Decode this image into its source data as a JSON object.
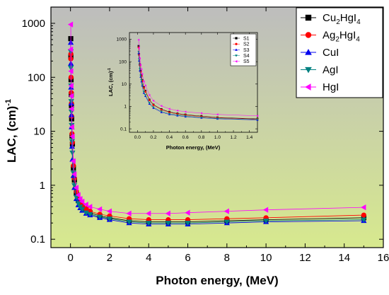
{
  "chart_data": [
    {
      "id": "main",
      "type": "line",
      "xlabel": "Photon energy, (MeV)",
      "ylabel_main": "LAC,  (cm)",
      "ylabel_sup": "-1",
      "xlim": [
        -1,
        16
      ],
      "ylim": [
        0.07,
        2000
      ],
      "yscale": "log",
      "x_ticks": [
        0,
        2,
        4,
        6,
        8,
        10,
        12,
        14,
        16
      ],
      "y_ticks": [
        0.1,
        1,
        10,
        100,
        1000
      ],
      "y_tick_labels": [
        "0.1",
        "1",
        "10",
        "100",
        "1000"
      ],
      "background_gradient": [
        "#bdbdbd",
        "#d7e98e"
      ],
      "legend_position": "top-right",
      "x": [
        0.015,
        0.02,
        0.03,
        0.04,
        0.05,
        0.06,
        0.08,
        0.1,
        0.15,
        0.2,
        0.3,
        0.4,
        0.5,
        0.6,
        0.8,
        1,
        1.5,
        2,
        3,
        4,
        5,
        6,
        8,
        10,
        15
      ],
      "series": [
        {
          "name_base": "Cu",
          "name_sub1": "2",
          "name_mid": "HgI",
          "name_sub2": "4",
          "color": "#000000",
          "marker": "square",
          "values": [
            520,
            240,
            90,
            48,
            30,
            17,
            8.2,
            5.8,
            2.1,
            1.25,
            0.72,
            0.52,
            0.45,
            0.4,
            0.35,
            0.31,
            0.27,
            0.25,
            0.22,
            0.21,
            0.21,
            0.21,
            0.22,
            0.23,
            0.25
          ]
        },
        {
          "name_base": "Ag",
          "name_sub1": "2",
          "name_mid": "HgI",
          "name_sub2": "4",
          "color": "#ff0000",
          "marker": "circle",
          "values": [
            220,
            270,
            100,
            52,
            33,
            19,
            9,
            6.2,
            2.3,
            1.35,
            0.77,
            0.56,
            0.48,
            0.43,
            0.37,
            0.33,
            0.29,
            0.27,
            0.24,
            0.23,
            0.23,
            0.23,
            0.24,
            0.25,
            0.28
          ]
        },
        {
          "name_base": "CuI",
          "name_sub1": "",
          "name_mid": "",
          "name_sub2": "",
          "color": "#0000ee",
          "marker": "triangle-up",
          "values": [
            440,
            180,
            65,
            33,
            20,
            12,
            5.2,
            3.0,
            1.5,
            0.9,
            0.56,
            0.43,
            0.38,
            0.34,
            0.3,
            0.28,
            0.25,
            0.23,
            0.2,
            0.19,
            0.19,
            0.19,
            0.2,
            0.21,
            0.22
          ]
        },
        {
          "name_base": "AgI",
          "name_sub1": "",
          "name_mid": "",
          "name_sub2": "",
          "color": "#008080",
          "marker": "triangle-down",
          "values": [
            300,
            150,
            70,
            36,
            23,
            13,
            6.5,
            4.0,
            1.7,
            1.0,
            0.6,
            0.46,
            0.4,
            0.36,
            0.31,
            0.29,
            0.26,
            0.24,
            0.21,
            0.2,
            0.2,
            0.2,
            0.21,
            0.22,
            0.23
          ]
        },
        {
          "name_base": "HgI",
          "name_sub1": "",
          "name_mid": "",
          "name_sub2": "",
          "color": "#ff00ff",
          "marker": "triangle-left",
          "values": [
            950,
            330,
            130,
            70,
            45,
            26,
            12,
            8.0,
            2.8,
            1.6,
            0.9,
            0.66,
            0.56,
            0.5,
            0.44,
            0.4,
            0.36,
            0.33,
            0.3,
            0.3,
            0.3,
            0.31,
            0.33,
            0.35,
            0.39
          ]
        }
      ]
    },
    {
      "id": "inset",
      "type": "line",
      "xlabel": "Photon energy, (MeV)",
      "ylabel_main": "LAC,  (cm)",
      "ylabel_sup": "-1",
      "xlim": [
        -0.1,
        1.5
      ],
      "ylim": [
        0.07,
        2000
      ],
      "yscale": "log",
      "x_ticks": [
        0,
        0.2,
        0.4,
        0.6,
        0.8,
        1,
        1.2,
        1.4
      ],
      "x_tick_labels": [
        "0.0",
        "0.2",
        "0.4",
        "0.6",
        "0.8",
        "1.0",
        "1.2",
        "1.4"
      ],
      "y_ticks": [
        0.1,
        1,
        10,
        100,
        1000
      ],
      "y_tick_labels": [
        "0.1",
        "1",
        "10",
        "100",
        "1000"
      ],
      "legend_position": "top-right",
      "x": [
        0.015,
        0.02,
        0.03,
        0.04,
        0.05,
        0.06,
        0.08,
        0.1,
        0.15,
        0.2,
        0.3,
        0.4,
        0.5,
        0.6,
        0.8,
        1,
        1.5
      ],
      "series": [
        {
          "name": "S1",
          "color": "#000000",
          "marker": "square",
          "values": [
            500,
            220,
            75,
            38,
            24,
            15,
            7.2,
            4.9,
            2.0,
            1.2,
            0.75,
            0.57,
            0.48,
            0.43,
            0.37,
            0.32,
            0.28
          ]
        },
        {
          "name": "S2",
          "color": "#ff0000",
          "marker": "circle",
          "values": [
            430,
            200,
            70,
            36,
            23,
            14,
            6.8,
            4.6,
            1.9,
            1.15,
            0.72,
            0.54,
            0.46,
            0.41,
            0.35,
            0.31,
            0.27
          ]
        },
        {
          "name": "S3",
          "color": "#0000ee",
          "marker": "triangle-up",
          "values": [
            240,
            110,
            40,
            21,
            13,
            8.5,
            4.0,
            2.9,
            1.3,
            0.85,
            0.55,
            0.44,
            0.39,
            0.35,
            0.31,
            0.28,
            0.25
          ]
        },
        {
          "name": "S4",
          "color": "#008080",
          "marker": "triangle-down",
          "values": [
            280,
            130,
            47,
            24,
            15,
            9.5,
            4.5,
            3.2,
            1.45,
            0.92,
            0.6,
            0.47,
            0.41,
            0.37,
            0.32,
            0.29,
            0.26
          ]
        },
        {
          "name": "S5",
          "color": "#ff00ff",
          "marker": "triangle-left",
          "values": [
            950,
            400,
            140,
            72,
            46,
            28,
            13,
            8.5,
            3.2,
            1.8,
            1.05,
            0.78,
            0.65,
            0.58,
            0.5,
            0.44,
            0.38
          ]
        }
      ]
    }
  ]
}
